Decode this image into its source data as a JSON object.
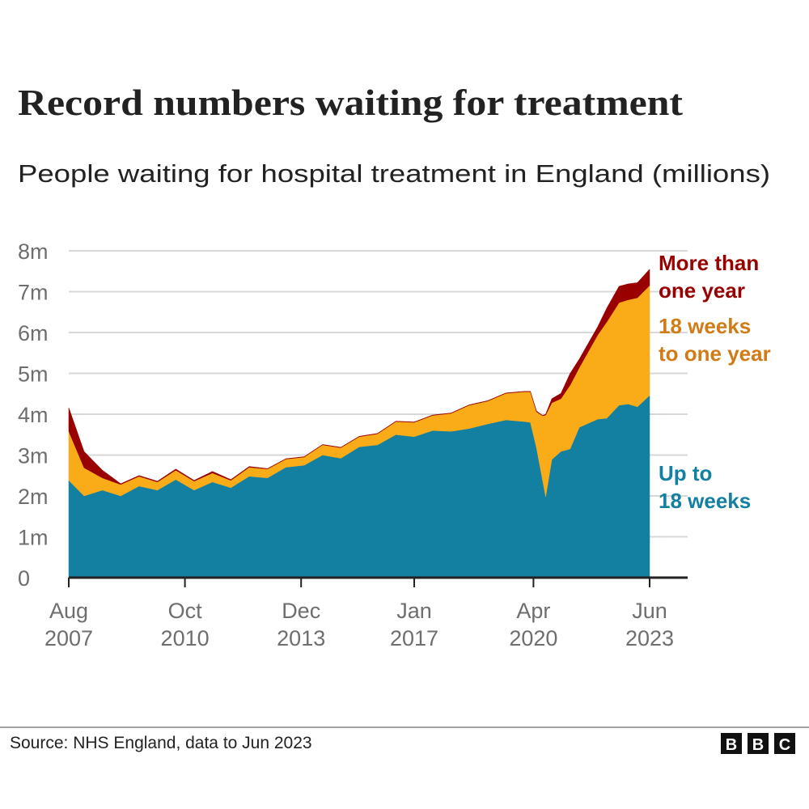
{
  "title": "Record numbers waiting for treatment",
  "subtitle": "People waiting for hospital treatment in England (millions)",
  "source": "Source: NHS England, data to Jun 2023",
  "logo": [
    "B",
    "B",
    "C"
  ],
  "colors": {
    "up_to_18_weeks": "#1380a1",
    "weeks_18_to_one_year": "#faab18",
    "more_than_one_year": "#990000",
    "label_orange": "#d17b16"
  },
  "chart_data": {
    "type": "area",
    "stacked": true,
    "title": "People waiting for hospital treatment in England (millions)",
    "xlabel": "",
    "ylabel": "",
    "ylim": [
      0,
      8
    ],
    "grid": true,
    "yticks": [
      "0",
      "1m",
      "2m",
      "3m",
      "4m",
      "5m",
      "6m",
      "7m",
      "8m"
    ],
    "xticks": [
      {
        "date": "2007-08",
        "month": "Aug",
        "year": "2007"
      },
      {
        "date": "2010-10",
        "month": "Oct",
        "year": "2010"
      },
      {
        "date": "2013-12",
        "month": "Dec",
        "year": "2013"
      },
      {
        "date": "2017-01",
        "month": "Jan",
        "year": "2017"
      },
      {
        "date": "2020-04",
        "month": "Apr",
        "year": "2020"
      },
      {
        "date": "2023-06",
        "month": "Jun",
        "year": "2023"
      }
    ],
    "legend_placement": "right, inline labels",
    "x": [
      "2007-08",
      "2008-01",
      "2008-07",
      "2009-01",
      "2009-07",
      "2010-01",
      "2010-07",
      "2011-01",
      "2011-07",
      "2012-01",
      "2012-07",
      "2013-01",
      "2013-07",
      "2014-01",
      "2014-07",
      "2015-01",
      "2015-07",
      "2016-01",
      "2016-07",
      "2017-01",
      "2017-07",
      "2018-01",
      "2018-07",
      "2019-01",
      "2019-07",
      "2020-01",
      "2020-03",
      "2020-05",
      "2020-07",
      "2020-08",
      "2020-10",
      "2021-01",
      "2021-04",
      "2021-07",
      "2022-01",
      "2022-04",
      "2022-08",
      "2022-11",
      "2023-02",
      "2023-06"
    ],
    "series": [
      {
        "name": "Up to 18 weeks",
        "label_lines": [
          "Up to",
          "18 weeks"
        ],
        "values": [
          2.38,
          2.0,
          2.14,
          2.0,
          2.24,
          2.14,
          2.4,
          2.14,
          2.34,
          2.2,
          2.48,
          2.44,
          2.7,
          2.75,
          3.0,
          2.92,
          3.2,
          3.25,
          3.5,
          3.45,
          3.6,
          3.58,
          3.65,
          3.76,
          3.86,
          3.82,
          3.8,
          3.17,
          2.38,
          1.98,
          2.89,
          3.09,
          3.15,
          3.68,
          3.88,
          3.9,
          4.22,
          4.25,
          4.18,
          4.46
        ]
      },
      {
        "name": "18 weeks to one year",
        "label_lines": [
          "18 weeks",
          "to one year"
        ],
        "values": [
          1.2,
          0.69,
          0.3,
          0.28,
          0.24,
          0.2,
          0.23,
          0.22,
          0.22,
          0.18,
          0.22,
          0.22,
          0.2,
          0.2,
          0.25,
          0.26,
          0.25,
          0.27,
          0.32,
          0.35,
          0.37,
          0.44,
          0.57,
          0.56,
          0.65,
          0.73,
          0.75,
          0.89,
          1.58,
          2.0,
          1.39,
          1.29,
          1.56,
          1.46,
          2.06,
          2.36,
          2.51,
          2.55,
          2.67,
          2.69
        ]
      },
      {
        "name": "More than one year",
        "label_lines": [
          "More than",
          "one year"
        ],
        "values": [
          0.58,
          0.4,
          0.19,
          0.02,
          0.02,
          0.02,
          0.03,
          0.02,
          0.04,
          0.02,
          0.02,
          0.01,
          0.01,
          0.01,
          0.01,
          0.01,
          0.01,
          0.01,
          0.01,
          0.01,
          0.01,
          0.01,
          0.01,
          0.01,
          0.01,
          0.01,
          0.01,
          0.02,
          0.01,
          0.02,
          0.1,
          0.13,
          0.29,
          0.21,
          0.2,
          0.34,
          0.4,
          0.39,
          0.37,
          0.4
        ]
      }
    ]
  }
}
